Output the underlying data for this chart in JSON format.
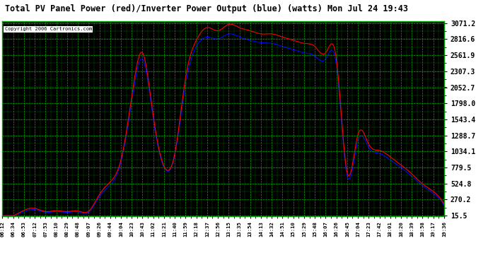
{
  "title": "Total PV Panel Power (red)/Inverter Power Output (blue) (watts) Mon Jul 24 19:43",
  "copyright": "Copyright 2006 Cartronics.com",
  "bg_color": "#FFFFFF",
  "plot_bg_color": "#000000",
  "grid_color_solid": "#00CC00",
  "grid_color_dash": "#006600",
  "yticks": [
    15.5,
    270.2,
    524.8,
    779.5,
    1034.1,
    1288.7,
    1543.4,
    1798.0,
    2052.7,
    2307.3,
    2561.9,
    2816.6,
    3071.2
  ],
  "xtick_labels": [
    "06:12",
    "06:34",
    "06:53",
    "07:12",
    "07:53",
    "08:10",
    "08:29",
    "08:48",
    "09:07",
    "09:26",
    "09:44",
    "10:04",
    "10:23",
    "10:43",
    "11:02",
    "11:21",
    "11:40",
    "11:59",
    "12:18",
    "12:37",
    "12:56",
    "13:15",
    "13:35",
    "13:54",
    "14:13",
    "14:32",
    "14:51",
    "15:10",
    "15:29",
    "15:48",
    "16:07",
    "16:26",
    "16:45",
    "17:04",
    "17:23",
    "17:42",
    "18:01",
    "18:20",
    "18:39",
    "18:58",
    "19:17",
    "19:36"
  ],
  "ymin": 15.5,
  "ymax": 3071.2,
  "red_keypoints": [
    [
      0,
      15
    ],
    [
      1,
      15
    ],
    [
      2,
      100
    ],
    [
      3,
      130
    ],
    [
      4,
      80
    ],
    [
      5,
      95
    ],
    [
      6,
      80
    ],
    [
      7,
      90
    ],
    [
      8,
      85
    ],
    [
      9,
      350
    ],
    [
      10,
      550
    ],
    [
      11,
      900
    ],
    [
      12,
      1900
    ],
    [
      13,
      2600
    ],
    [
      14,
      1600
    ],
    [
      15,
      800
    ],
    [
      16,
      1000
    ],
    [
      17,
      2200
    ],
    [
      18,
      2800
    ],
    [
      19,
      3000
    ],
    [
      20,
      2950
    ],
    [
      21,
      3050
    ],
    [
      22,
      3000
    ],
    [
      23,
      2950
    ],
    [
      24,
      2900
    ],
    [
      25,
      2900
    ],
    [
      26,
      2850
    ],
    [
      27,
      2800
    ],
    [
      28,
      2750
    ],
    [
      29,
      2700
    ],
    [
      30,
      2600
    ],
    [
      31,
      2500
    ],
    [
      32,
      700
    ],
    [
      33,
      1300
    ],
    [
      34,
      1150
    ],
    [
      35,
      1050
    ],
    [
      36,
      950
    ],
    [
      37,
      820
    ],
    [
      38,
      680
    ],
    [
      39,
      520
    ],
    [
      40,
      400
    ],
    [
      41,
      200
    ]
  ],
  "blue_keypoints": [
    [
      0,
      15
    ],
    [
      1,
      15
    ],
    [
      2,
      80
    ],
    [
      3,
      110
    ],
    [
      4,
      70
    ],
    [
      5,
      80
    ],
    [
      6,
      68
    ],
    [
      7,
      75
    ],
    [
      8,
      70
    ],
    [
      9,
      320
    ],
    [
      10,
      500
    ],
    [
      11,
      870
    ],
    [
      12,
      1820
    ],
    [
      13,
      2500
    ],
    [
      14,
      1550
    ],
    [
      15,
      780
    ],
    [
      16,
      980
    ],
    [
      17,
      2100
    ],
    [
      18,
      2700
    ],
    [
      19,
      2850
    ],
    [
      20,
      2820
    ],
    [
      21,
      2900
    ],
    [
      22,
      2850
    ],
    [
      23,
      2800
    ],
    [
      24,
      2760
    ],
    [
      25,
      2750
    ],
    [
      26,
      2700
    ],
    [
      27,
      2650
    ],
    [
      28,
      2600
    ],
    [
      29,
      2550
    ],
    [
      30,
      2500
    ],
    [
      31,
      2400
    ],
    [
      32,
      650
    ],
    [
      33,
      1200
    ],
    [
      34,
      1100
    ],
    [
      35,
      1000
    ],
    [
      36,
      900
    ],
    [
      37,
      780
    ],
    [
      38,
      640
    ],
    [
      39,
      490
    ],
    [
      40,
      370
    ],
    [
      41,
      180
    ]
  ]
}
